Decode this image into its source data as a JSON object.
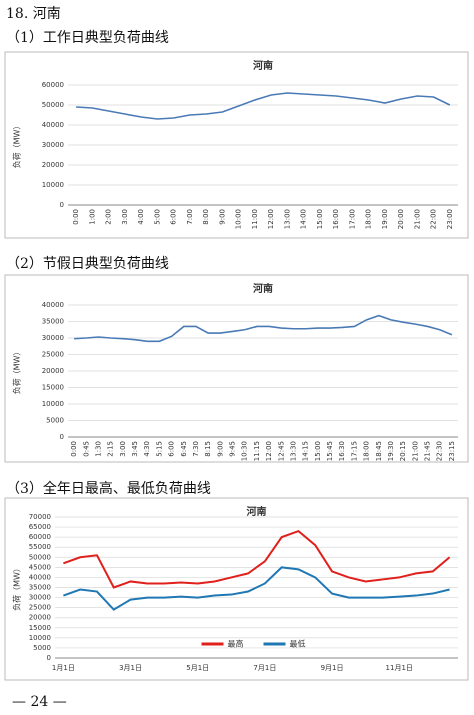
{
  "header": "18. 河南",
  "headings": [
    "（1）工作日典型负荷曲线",
    "（2）节假日典型负荷曲线",
    "（3）全年日最高、最低负荷曲线"
  ],
  "footer": "— 24 —",
  "chart_data": [
    {
      "type": "line",
      "title": "河南",
      "y_label": "负荷（MW）",
      "grid": true,
      "color": "#4a7ab5",
      "categories": [
        "0:00",
        "1:00",
        "2:00",
        "3:00",
        "4:00",
        "5:00",
        "6:00",
        "7:00",
        "8:00",
        "9:00",
        "10:00",
        "11:00",
        "12:00",
        "13:00",
        "14:00",
        "15:00",
        "16:00",
        "17:00",
        "18:00",
        "19:00",
        "20:00",
        "21:00",
        "22:00",
        "23:00"
      ],
      "values": [
        49000,
        48500,
        47000,
        45500,
        44000,
        43000,
        43500,
        45000,
        45500,
        46500,
        49500,
        52500,
        55000,
        56000,
        55500,
        55000,
        54500,
        53500,
        52500,
        51000,
        53000,
        54500,
        54000,
        50000
      ],
      "ylim": [
        0,
        60000
      ],
      "yticks": [
        0,
        10000,
        20000,
        30000,
        40000,
        50000,
        60000
      ]
    },
    {
      "type": "line",
      "title": "河南",
      "y_label": "负荷（MW）",
      "grid": true,
      "color": "#4a7ab5",
      "categories": [
        "0:00",
        "0:45",
        "1:30",
        "2:15",
        "3:00",
        "3:45",
        "4:30",
        "5:15",
        "6:00",
        "6:45",
        "7:30",
        "8:15",
        "9:00",
        "9:45",
        "10:30",
        "11:15",
        "12:00",
        "12:45",
        "13:30",
        "14:15",
        "15:00",
        "15:45",
        "16:30",
        "17:15",
        "18:00",
        "18:45",
        "19:30",
        "20:15",
        "21:00",
        "21:45",
        "22:30",
        "23:15"
      ],
      "values": [
        29800,
        30000,
        30300,
        30000,
        29800,
        29500,
        29000,
        29000,
        30500,
        33500,
        33500,
        31500,
        31500,
        32000,
        32500,
        33500,
        33500,
        33000,
        32800,
        32800,
        33000,
        33000,
        33200,
        33500,
        35500,
        36800,
        35500,
        34800,
        34200,
        33500,
        32500,
        31000
      ],
      "ylim": [
        0,
        40000
      ],
      "yticks": [
        0,
        5000,
        10000,
        15000,
        20000,
        25000,
        30000,
        35000,
        40000
      ]
    },
    {
      "type": "line",
      "title": "河南",
      "y_label": "负荷（MW）",
      "grid": true,
      "legend": "bottom",
      "categories": [
        "1月1日",
        null,
        null,
        null,
        "3月1日",
        null,
        null,
        null,
        "5月1日",
        null,
        null,
        null,
        "7月1日",
        null,
        null,
        null,
        "9月1日",
        null,
        null,
        null,
        "11月1日",
        null,
        null,
        null
      ],
      "series": [
        {
          "name": "最高",
          "color": "#e0201b",
          "values": [
            47000,
            50000,
            51000,
            35000,
            38000,
            37000,
            37000,
            37500,
            37000,
            38000,
            40000,
            42000,
            48000,
            60000,
            63000,
            56000,
            43000,
            40000,
            38000,
            39000,
            40000,
            42000,
            43000,
            50000
          ]
        },
        {
          "name": "最低",
          "color": "#1f77b4",
          "values": [
            31000,
            34000,
            33000,
            24000,
            29000,
            30000,
            30000,
            30500,
            30000,
            31000,
            31500,
            33000,
            37000,
            45000,
            44000,
            40000,
            32000,
            30000,
            30000,
            30000,
            30500,
            31000,
            32000,
            34000
          ]
        }
      ],
      "ylim": [
        0,
        70000
      ],
      "yticks": [
        0,
        5000,
        10000,
        15000,
        20000,
        25000,
        30000,
        35000,
        40000,
        45000,
        50000,
        55000,
        60000,
        65000,
        70000
      ]
    }
  ]
}
